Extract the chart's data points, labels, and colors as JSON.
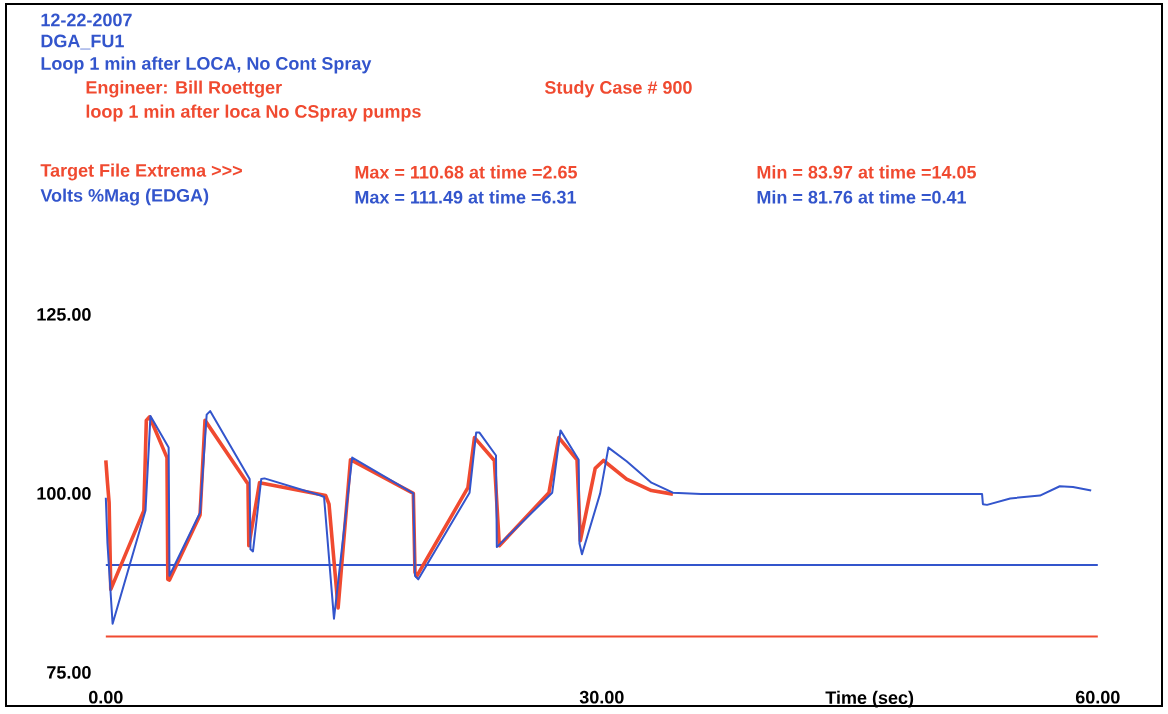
{
  "chart_data": {
    "type": "line",
    "title": "12-22-2007",
    "subtitle": "DGA_FU1",
    "xlabel": "Time (sec)",
    "annotations": [
      "Loop 1 min after LOCA, No Cont Spray",
      "Engineer: Bill Roettger",
      "Study Case # 900",
      "loop 1 min after loca No CSpray pumps",
      "Max =  110.68 at time =2.65",
      "Min =  83.97 at time =14.05",
      "Max =  111.49 at time =6.31",
      "Min =  81.76 at time =0.41"
    ],
    "xlim": [
      0,
      60
    ],
    "ylim": [
      75,
      125
    ],
    "xticks": [
      {
        "value": 0,
        "label": "0.00"
      },
      {
        "value": 30,
        "label": "30.00"
      },
      {
        "value": 60,
        "label": "60.00"
      }
    ],
    "yticks": [
      {
        "value": 75,
        "label": "75.00"
      },
      {
        "value": 100,
        "label": "100.00"
      },
      {
        "value": 125,
        "label": "125.00"
      }
    ],
    "grid": false,
    "ref_lines": [
      {
        "axis": "y",
        "value": 90,
        "color": "#3355cc"
      },
      {
        "axis": "y",
        "value": 80,
        "color": "#f04a30"
      }
    ],
    "series": [
      {
        "name": "Target File Extrema >>>",
        "color": "#f04a30",
        "x": [
          0,
          0.1,
          0.2,
          0.3,
          2.3,
          2.45,
          2.65,
          3.7,
          3.75,
          3.85,
          5.7,
          6.0,
          8.6,
          8.65,
          9.3,
          13.3,
          13.5,
          14.05,
          14.8,
          18.6,
          18.7,
          18.8,
          21.9,
          22.3,
          23.5,
          23.8,
          26.8,
          27.4,
          28.5,
          28.7,
          29.6,
          30.1,
          31.5,
          33,
          34.3
        ],
        "values": [
          104.6,
          101.5,
          98.7,
          86.6,
          97.6,
          110.2,
          110.7,
          105,
          88,
          87.9,
          97,
          110.2,
          101.3,
          92.7,
          101.5,
          99.7,
          98.5,
          84,
          104.7,
          100,
          89,
          88.4,
          100.8,
          107.8,
          104.6,
          92.7,
          100.1,
          107.8,
          104.7,
          93.4,
          103.5,
          104.6,
          102,
          100.4,
          99.9
        ]
      },
      {
        "name": "Volts %Mag (EDGA)",
        "color": "#3355cc",
        "x": [
          0,
          0.1,
          0.41,
          2.4,
          2.7,
          3.8,
          3.85,
          5.7,
          6.1,
          6.31,
          8.7,
          8.75,
          8.9,
          9.4,
          9.6,
          13.0,
          13.2,
          13.8,
          14.9,
          18.6,
          18.7,
          18.9,
          22.0,
          22.4,
          22.6,
          23.6,
          23.65,
          27.0,
          27.5,
          28.6,
          28.65,
          28.8,
          29.9,
          30.4,
          31.5,
          33,
          34.3,
          36,
          53,
          53.05,
          53.3,
          54.7,
          56.5,
          57.7,
          58.5,
          59.6
        ],
        "values": [
          99.4,
          93,
          81.8,
          97.6,
          110.8,
          106.4,
          88.5,
          97.3,
          111,
          111.5,
          102,
          92.2,
          91.9,
          102,
          102.1,
          99.7,
          99.5,
          82.5,
          105,
          100,
          88.5,
          88,
          100.1,
          108.5,
          108.5,
          105.3,
          92.5,
          100.1,
          108.8,
          104.7,
          93,
          91.5,
          100,
          106.4,
          104.5,
          101.5,
          100.1,
          99.9,
          99.9,
          98.5,
          98.4,
          99.3,
          99.7,
          101,
          100.9,
          100.4
        ]
      }
    ]
  }
}
